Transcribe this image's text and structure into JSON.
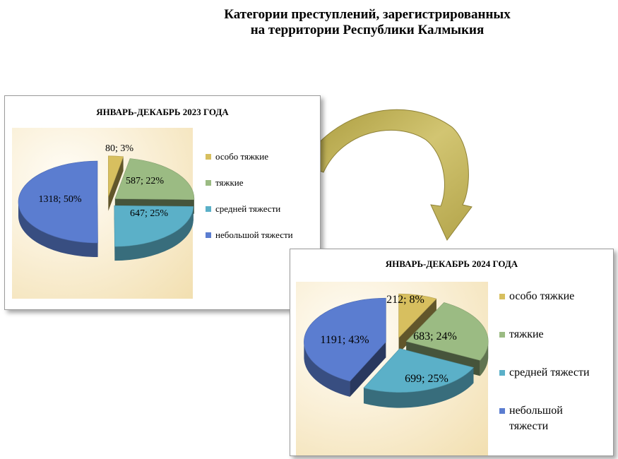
{
  "page": {
    "title_line1": "Категории  преступлений,  зарегистрированных",
    "title_line2": "на территории  Республики Калмыкия"
  },
  "chart_data": [
    {
      "type": "pie",
      "title": "ЯНВАРЬ-ДЕКАБРЬ 2023 ГОДА",
      "categories": [
        "особо тяжкие",
        "тяжкие",
        "средней тяжести",
        "небольшой тяжести"
      ],
      "values": [
        80,
        587,
        647,
        1318
      ],
      "percents": [
        3,
        22,
        25,
        50
      ],
      "data_labels": [
        "80; 3%",
        "587; 22%",
        "647; 25%",
        "1318; 50%"
      ],
      "colors": [
        "#d7bf5f",
        "#9bbb83",
        "#5bb0c8",
        "#5b7dd0"
      ],
      "legend_position": "right",
      "exploded": true,
      "style_3d": true
    },
    {
      "type": "pie",
      "title": "ЯНВАРЬ-ДЕКАБРЬ 2024 ГОДА",
      "categories": [
        "особо тяжкие",
        "тяжкие",
        "средней тяжести",
        "небольшой тяжести"
      ],
      "values": [
        212,
        683,
        699,
        1191
      ],
      "percents": [
        8,
        24,
        25,
        43
      ],
      "data_labels": [
        "212; 8%",
        "683; 24%",
        "699; 25%",
        "1191; 43%"
      ],
      "colors": [
        "#d7bf5f",
        "#9bbb83",
        "#5bb0c8",
        "#5b7dd0"
      ],
      "legend_position": "right",
      "exploded": true,
      "style_3d": true
    }
  ],
  "connector": {
    "shape": "curved-arrow",
    "direction": "from 2023 chart to 2024 chart",
    "color": "#c2b25a"
  }
}
